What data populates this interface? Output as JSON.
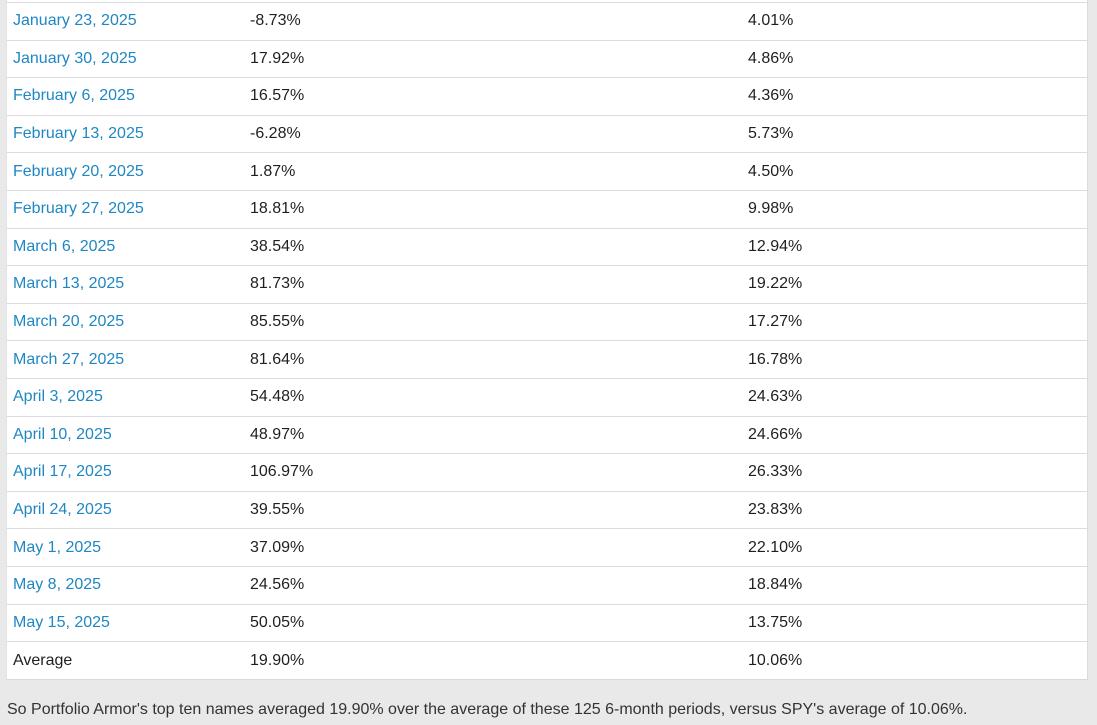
{
  "page": {
    "background_color": "#e9e9e9",
    "table_background": "#ffffff",
    "row_border_color": "#dcdce0",
    "link_color": "#1e87c4",
    "text_color": "#1f1f1f"
  },
  "table": {
    "rows": [
      {
        "date": "January 23, 2025",
        "top_ten_return": "-8.73%",
        "spy_return": "4.01%"
      },
      {
        "date": "January 30, 2025",
        "top_ten_return": "17.92%",
        "spy_return": "4.86%"
      },
      {
        "date": "February 6, 2025",
        "top_ten_return": "16.57%",
        "spy_return": "4.36%"
      },
      {
        "date": "February 13, 2025",
        "top_ten_return": "-6.28%",
        "spy_return": "5.73%"
      },
      {
        "date": "February 20, 2025",
        "top_ten_return": "1.87%",
        "spy_return": "4.50%"
      },
      {
        "date": "February 27, 2025",
        "top_ten_return": "18.81%",
        "spy_return": "9.98%"
      },
      {
        "date": "March 6, 2025",
        "top_ten_return": "38.54%",
        "spy_return": "12.94%"
      },
      {
        "date": "March 13, 2025",
        "top_ten_return": "81.73%",
        "spy_return": "19.22%"
      },
      {
        "date": "March 20, 2025",
        "top_ten_return": "85.55%",
        "spy_return": "17.27%"
      },
      {
        "date": "March 27, 2025",
        "top_ten_return": "81.64%",
        "spy_return": "16.78%"
      },
      {
        "date": "April 3, 2025",
        "top_ten_return": "54.48%",
        "spy_return": "24.63%"
      },
      {
        "date": "April 10, 2025",
        "top_ten_return": "48.97%",
        "spy_return": "24.66%"
      },
      {
        "date": "April 17, 2025",
        "top_ten_return": "106.97%",
        "spy_return": "26.33%"
      },
      {
        "date": "April 24, 2025",
        "top_ten_return": "39.55%",
        "spy_return": "23.83%"
      },
      {
        "date": "May 1, 2025",
        "top_ten_return": "37.09%",
        "spy_return": "22.10%"
      },
      {
        "date": "May 8, 2025",
        "top_ten_return": "24.56%",
        "spy_return": "18.84%"
      },
      {
        "date": "May 15, 2025",
        "top_ten_return": "50.05%",
        "spy_return": "13.75%"
      }
    ],
    "average_row": {
      "label": "Average",
      "top_ten_return": "19.90%",
      "spy_return": "10.06%"
    }
  },
  "footer": {
    "text": "So Portfolio Armor's top ten names averaged 19.90% over the average of these 125 6-month periods, versus SPY's average of 10.06%."
  }
}
